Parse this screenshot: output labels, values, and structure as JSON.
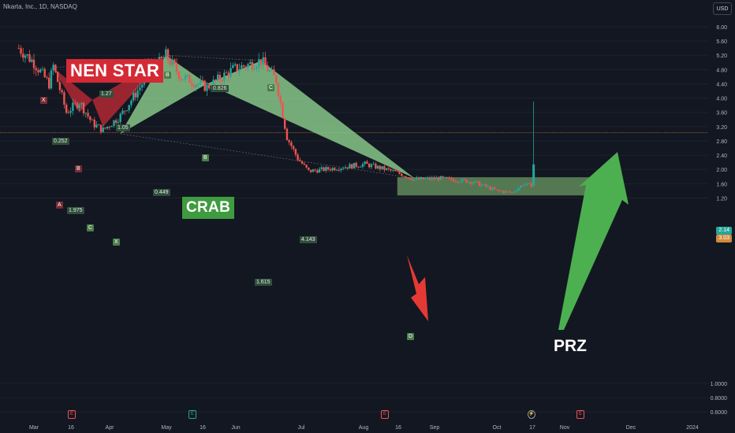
{
  "header": {
    "ticker": "Nkarta, Inc., 1D, NASDAQ",
    "currency_button": "USD"
  },
  "labels": {
    "nen_star": "NEN STAR",
    "crab": "CRAB",
    "prz": "PRZ"
  },
  "pattern_points": {
    "nen": {
      "x": "X",
      "a": "A",
      "b": "B",
      "c": "C"
    },
    "crab": {
      "x": "X",
      "a": "B",
      "b": "B",
      "c": "C",
      "d": "D"
    }
  },
  "ratios": {
    "r1": "1.27",
    "r2": "0.252",
    "r3": "1.975",
    "r4": "1.05",
    "r5": "0.826",
    "r6": "0.449",
    "r7": "4.143",
    "r8": "1.615"
  },
  "price_tags": {
    "last": "2.14",
    "line": "3.03"
  },
  "events": {
    "e1": "E",
    "e2": "E",
    "e3": "E",
    "e4": "E",
    "split": "⚡"
  },
  "colors": {
    "up": "#26a69a",
    "down": "#ef5350",
    "background": "#131722",
    "nen_fill": "#b22833",
    "crab_fill": "#8fd18f",
    "prz_box": "#6b9a63",
    "arrow_up": "#4caf50",
    "arrow_down": "#e53935"
  },
  "chart_data": {
    "type": "candlestick",
    "title": "Nkarta, Inc., 1D, NASDAQ",
    "x_ticks": [
      "Mar",
      "16",
      "Apr",
      "May",
      "16",
      "Jun",
      "Jul",
      "Aug",
      "16",
      "Sep",
      "Oct",
      "17",
      "Nov",
      "Dec",
      "2024"
    ],
    "y_ticks": [
      "6.00",
      "5.60",
      "5.20",
      "4.80",
      "4.40",
      "4.00",
      "3.60",
      "3.20",
      "2.80",
      "2.40",
      "2.00",
      "1.60",
      "1.20",
      "1.0000",
      "0.8000",
      "0.6000"
    ],
    "y_scale": "log",
    "ylim": [
      0.55,
      6.6
    ],
    "price_path": [
      [
        "Feb 22",
        5.4
      ],
      [
        "Mar 1",
        5.0
      ],
      [
        "Mar 8",
        4.4
      ],
      [
        "Mar 10",
        4.9
      ],
      [
        "Mar 16",
        3.6
      ],
      [
        "Mar 22",
        3.9
      ],
      [
        "Mar 28",
        3.3
      ],
      [
        "Apr 2",
        3.1
      ],
      [
        "Apr 10",
        3.5
      ],
      [
        "Apr 20",
        4.4
      ],
      [
        "May 1",
        5.2
      ],
      [
        "May 8",
        4.6
      ],
      [
        "May 20",
        4.3
      ],
      [
        "Jun 1",
        4.8
      ],
      [
        "Jun 14",
        5.05
      ],
      [
        "Jun 21",
        4.5
      ],
      [
        "Jun 26",
        2.9
      ],
      [
        "Jul 1",
        2.3
      ],
      [
        "Jul 6",
        1.95
      ],
      [
        "Jul 20",
        2.05
      ],
      [
        "Aug 1",
        2.15
      ],
      [
        "Aug 14",
        1.95
      ],
      [
        "Aug 24",
        1.72
      ],
      [
        "Sep 5",
        1.75
      ],
      [
        "Sep 20",
        1.65
      ],
      [
        "Oct 1",
        1.4
      ],
      [
        "Oct 8",
        1.35
      ],
      [
        "Oct 13",
        1.58
      ],
      [
        "Oct 17",
        1.55
      ],
      [
        "Oct 18",
        2.14
      ]
    ],
    "spike_high": 3.9,
    "last_price": 2.14,
    "horizontal_line": 3.03,
    "prz_zone": {
      "from": "Aug 16",
      "to": "Nov 28",
      "low": 1.27,
      "high": 1.78
    }
  }
}
